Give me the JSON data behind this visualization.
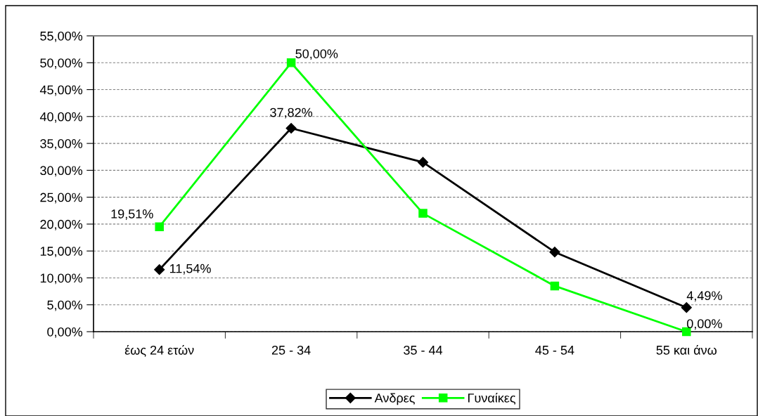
{
  "chart_data": {
    "type": "line",
    "categories": [
      "έως 24 ετών",
      "25 - 34",
      "35 - 44",
      "45 - 54",
      "55 και άνω"
    ],
    "series": [
      {
        "name": "Ανδρες",
        "color": "#000000",
        "marker": "diamond",
        "values": [
          11.54,
          37.82,
          31.5,
          14.8,
          4.49
        ],
        "value_labels": [
          "11,54%",
          "37,82%",
          null,
          null,
          "4,49%"
        ]
      },
      {
        "name": "Γυναίκες",
        "color": "#00ff00",
        "marker": "square",
        "values": [
          19.51,
          50.0,
          22.0,
          8.5,
          0.0
        ],
        "value_labels": [
          "19,51%",
          "50,00%",
          null,
          null,
          "0,00%"
        ]
      }
    ],
    "ylim": [
      0,
      55
    ],
    "yticks": [
      {
        "value": 0,
        "label": "0,00%"
      },
      {
        "value": 5,
        "label": "5,00%"
      },
      {
        "value": 10,
        "label": "10,00%"
      },
      {
        "value": 15,
        "label": "15,00%"
      },
      {
        "value": 20,
        "label": "20,00%"
      },
      {
        "value": 25,
        "label": "25,00%"
      },
      {
        "value": 30,
        "label": "30,00%"
      },
      {
        "value": 35,
        "label": "35,00%"
      },
      {
        "value": 40,
        "label": "40,00%"
      },
      {
        "value": 45,
        "label": "45,00%"
      },
      {
        "value": 50,
        "label": "50,00%"
      },
      {
        "value": 55,
        "label": "55,00%"
      }
    ],
    "grid": "y",
    "legend": "bottom",
    "line_style": "solid"
  }
}
